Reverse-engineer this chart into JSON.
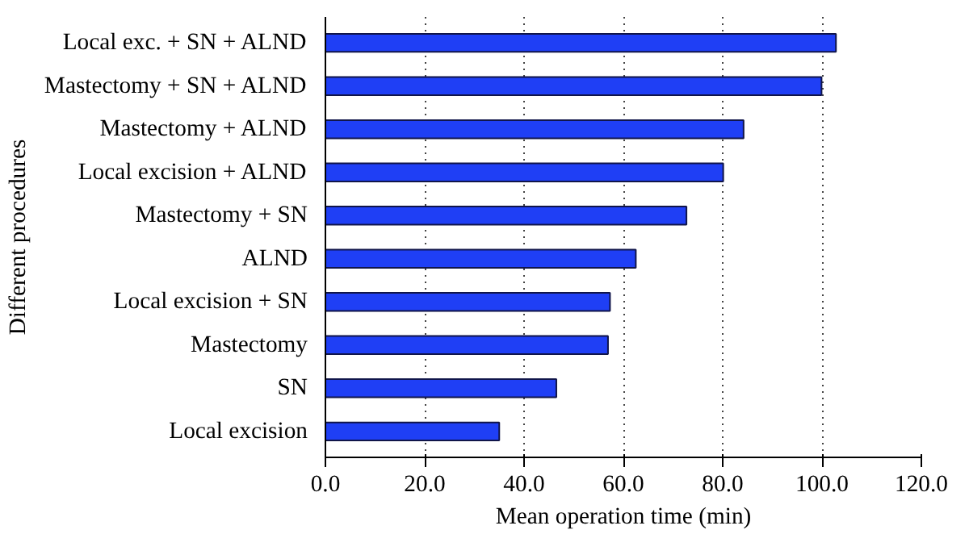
{
  "chart_data": {
    "type": "bar",
    "orientation": "horizontal",
    "xlabel": "Mean operation time (min)",
    "ylabel": "Different procedures",
    "categories": [
      "Local exc. + SN + ALND",
      "Mastectomy + SN + ALND",
      "Mastectomy + ALND",
      "Local excision + ALND",
      "Mastectomy + SN",
      "ALND",
      "Local excision + SN",
      "Mastectomy",
      "SN",
      "Local excision"
    ],
    "values": [
      102.8,
      99.9,
      84.2,
      80.1,
      72.7,
      62.5,
      57.3,
      56.9,
      46.5,
      35.0
    ],
    "color": "#1f3ff5",
    "xlim": [
      0,
      120
    ],
    "xticks": [
      {
        "value": 0,
        "label": "0.0"
      },
      {
        "value": 20,
        "label": "20.0"
      },
      {
        "value": 40,
        "label": "40.0"
      },
      {
        "value": 60,
        "label": "60.0"
      },
      {
        "value": 80,
        "label": "80.0"
      },
      {
        "value": 100,
        "label": "100.0"
      },
      {
        "value": 120,
        "label": "120.0"
      }
    ],
    "grid": "x"
  }
}
